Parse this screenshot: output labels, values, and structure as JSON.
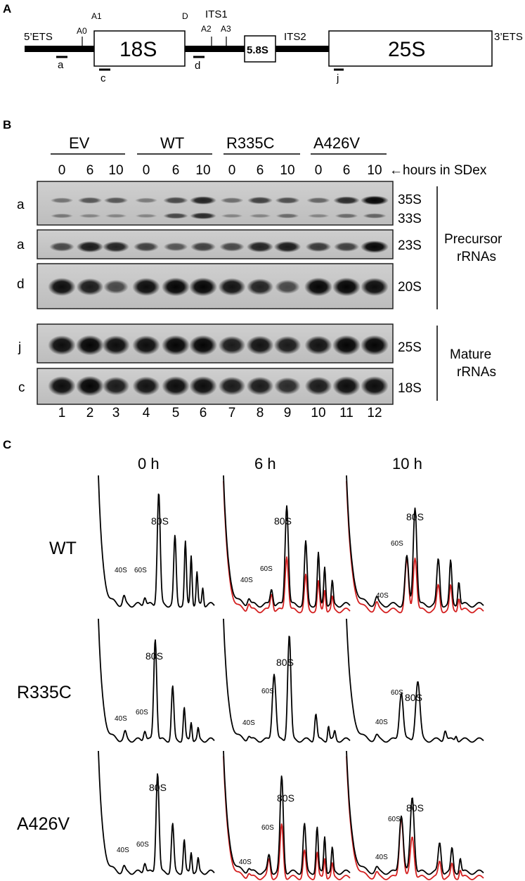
{
  "panel_a": {
    "letter": "A",
    "labels": {
      "ets5": "5’ETS",
      "a0": "A0",
      "a1": "A1",
      "r18s": "18S",
      "d": "D",
      "its1": "ITS1",
      "a2": "A2",
      "a3": "A3",
      "r58s": "5.8S",
      "its2": "ITS2",
      "r25s": "25S",
      "ets3": "3’ETS"
    },
    "probes": {
      "a": "a",
      "c": "c",
      "d": "d",
      "j": "j"
    }
  },
  "panel_b": {
    "letter": "B",
    "groups": [
      "EV",
      "WT",
      "R335C",
      "A426V"
    ],
    "hours": [
      "0",
      "6",
      "10",
      "0",
      "6",
      "10",
      "0",
      "6",
      "10",
      "0",
      "6",
      "10"
    ],
    "hours_label": "←hours in SDex",
    "rows": [
      {
        "probe": "a",
        "bands": [
          "35S",
          "33S"
        ]
      },
      {
        "probe": "a",
        "bands": [
          "23S"
        ]
      },
      {
        "probe": "d",
        "bands": [
          "20S"
        ]
      },
      {
        "probe": "j",
        "bands": [
          "25S"
        ]
      },
      {
        "probe": "c",
        "bands": [
          "18S"
        ]
      }
    ],
    "brackets": {
      "precursor_1": "Precursor",
      "precursor_2": "rRNAs",
      "mature_1": "Mature",
      "mature_2": "rRNAs"
    },
    "lanes": [
      "1",
      "2",
      "3",
      "4",
      "5",
      "6",
      "7",
      "8",
      "9",
      "10",
      "11",
      "12"
    ]
  },
  "panel_c": {
    "letter": "C",
    "times": [
      "0 h",
      "6 h",
      "10 h"
    ],
    "strains": [
      "WT",
      "R335C",
      "A426V"
    ],
    "peaks": {
      "p40": "40S",
      "p60": "60S",
      "p80": "80S"
    },
    "colors": {
      "black": "#000000",
      "red": "#d42020"
    }
  }
}
